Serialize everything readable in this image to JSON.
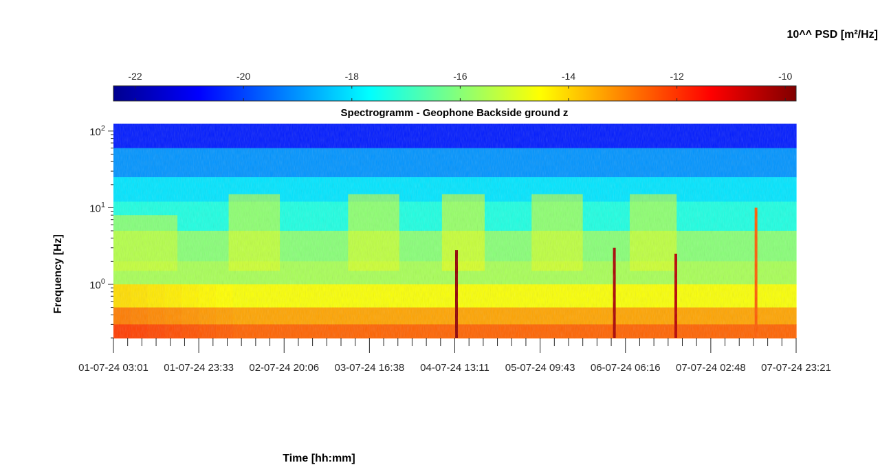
{
  "chart_data": {
    "type": "heatmap",
    "title": "Spectrogramm - Geophone Backside ground z",
    "xlabel": "Time [hh:mm]",
    "ylabel": "Frequency [Hz]",
    "colorbar_label": "10^^ PSD [m²/Hz]",
    "colormap": "jet",
    "color_range": [
      -22.4,
      -9.8
    ],
    "colorbar_ticks": [
      "-22",
      "-20",
      "-18",
      "-16",
      "-14",
      "-12",
      "-10"
    ],
    "colorbar_tick_values": [
      -22,
      -20,
      -18,
      -16,
      -14,
      -12,
      -10
    ],
    "yscale": "log",
    "ylim": [
      0.2,
      125
    ],
    "ytick_labels": [
      {
        "base": "10",
        "exp": "0",
        "value": 1
      },
      {
        "base": "10",
        "exp": "1",
        "value": 10
      },
      {
        "base": "10",
        "exp": "2",
        "value": 100
      }
    ],
    "x_tick_labels": [
      "01-07-24  03:01",
      "01-07-24  23:33",
      "02-07-24  20:06",
      "03-07-24  16:38",
      "04-07-24  13:11",
      "05-07-24  09:43",
      "06-07-24  06:16",
      "07-07-24  02:48",
      "07-07-24  23:21"
    ],
    "x_tick_positions": [
      0,
      1,
      2,
      3,
      4,
      5,
      6,
      7,
      8
    ],
    "bands": [
      {
        "f_min": 60,
        "f_max": 125,
        "psd": -20.5
      },
      {
        "f_min": 25,
        "f_max": 60,
        "psd": -19.0
      },
      {
        "f_min": 12,
        "f_max": 25,
        "psd": -18.0
      },
      {
        "f_min": 5,
        "f_max": 12,
        "psd": -17.3
      },
      {
        "f_min": 2,
        "f_max": 5,
        "psd": -16.0
      },
      {
        "f_min": 1,
        "f_max": 2,
        "psd": -15.6
      },
      {
        "f_min": 0.5,
        "f_max": 1,
        "psd": -14.6
      },
      {
        "f_min": 0.3,
        "f_max": 0.5,
        "psd": -13.4
      },
      {
        "f_min": 0.2,
        "f_max": 0.3,
        "psd": -12.6
      }
    ],
    "daily_activity_bursts": [
      {
        "t_start": 1.35,
        "t_end": 1.95,
        "f_min": 1.5,
        "f_max": 15,
        "psd": -14.8
      },
      {
        "t_start": 2.75,
        "t_end": 3.35,
        "f_min": 1.5,
        "f_max": 15,
        "psd": -14.8
      },
      {
        "t_start": 3.85,
        "t_end": 4.35,
        "f_min": 1.5,
        "f_max": 15,
        "psd": -14.6
      },
      {
        "t_start": 4.9,
        "t_end": 5.5,
        "f_min": 1.5,
        "f_max": 15,
        "psd": -14.8
      },
      {
        "t_start": 6.05,
        "t_end": 6.6,
        "f_min": 1.5,
        "f_max": 15,
        "psd": -14.8
      },
      {
        "t_start": 0.0,
        "t_end": 0.75,
        "f_min": 1.5,
        "f_max": 8,
        "psd": -15.0
      }
    ],
    "transient_events": [
      {
        "t": 4.02,
        "f_min": 0.2,
        "f_max": 2.8,
        "psd": -10.0
      },
      {
        "t": 5.87,
        "f_min": 0.2,
        "f_max": 3.0,
        "psd": -10.3
      },
      {
        "t": 6.59,
        "f_min": 0.2,
        "f_max": 2.5,
        "psd": -10.5
      },
      {
        "t": 7.53,
        "f_min": 0.2,
        "f_max": 10,
        "psd": -12.5
      }
    ]
  }
}
